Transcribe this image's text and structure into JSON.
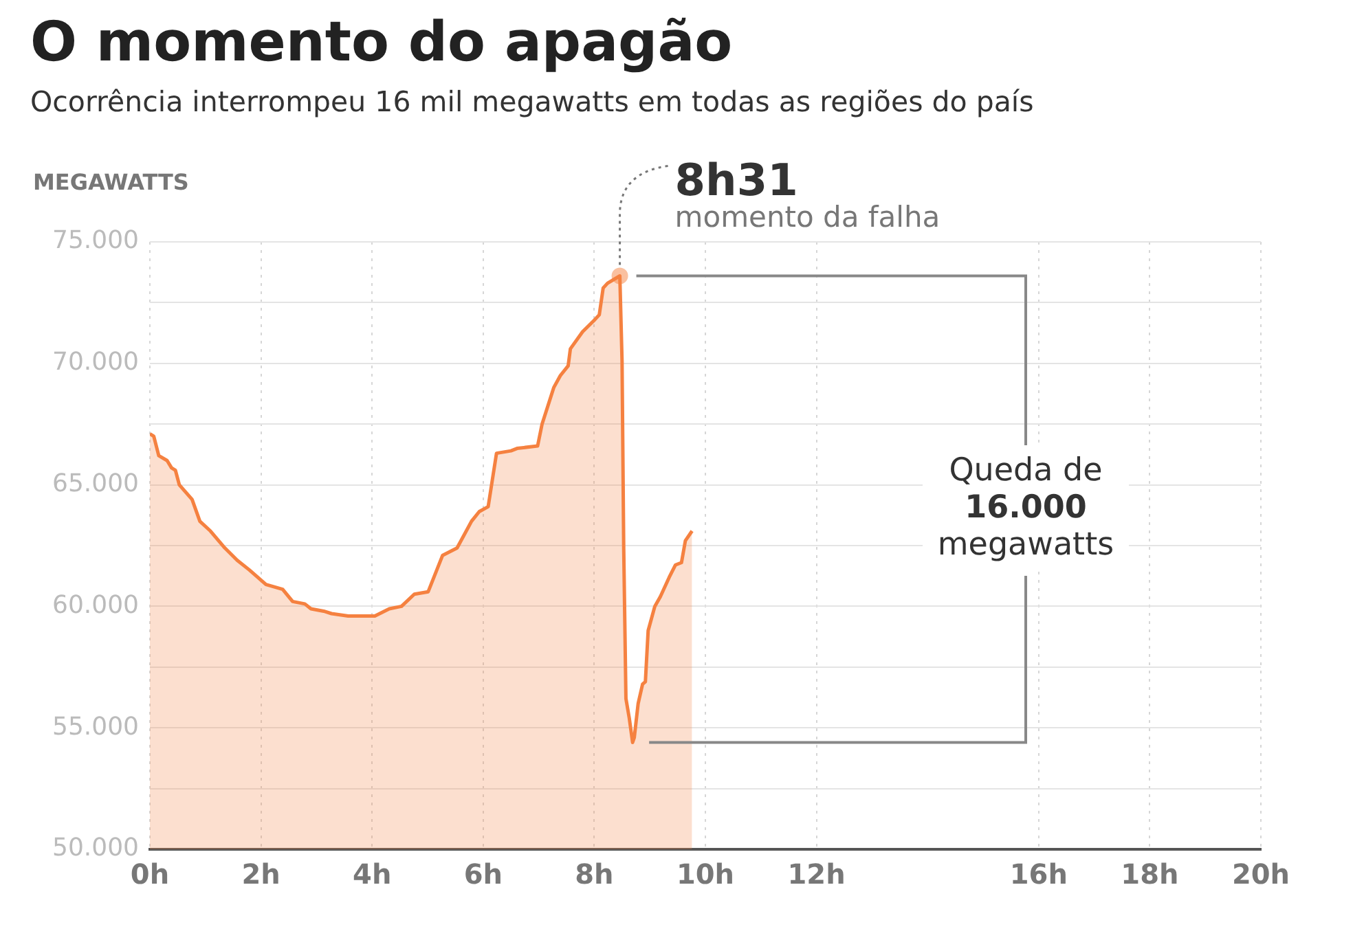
{
  "chart_data": {
    "type": "area",
    "title": "O momento do apagão",
    "subtitle": "Ocorrência interrompeu 16 mil megawatts em todas as regiões do país",
    "ylabel": "MEGAWATTS",
    "series": [
      {
        "color": "#f58140",
        "x": [
          0,
          0.07,
          0.16,
          0.31,
          0.39,
          0.46,
          0.53,
          0.76,
          0.9,
          1.09,
          1.35,
          1.57,
          1.79,
          2.09,
          2.39,
          2.57,
          2.79,
          2.9,
          3.13,
          3.27,
          3.57,
          4.05,
          4.31,
          4.53,
          4.76,
          5.01,
          5.27,
          5.53,
          5.79,
          5.93,
          6.09,
          6.24,
          6.5,
          6.61,
          6.98,
          7.06,
          7.27,
          7.39,
          7.53,
          7.57,
          7.79,
          8.01,
          8.09,
          8.16,
          8.24,
          8.46,
          8.5,
          8.53,
          8.57,
          8.63,
          8.69,
          8.72,
          8.79,
          8.87,
          8.92,
          8.97,
          9.09,
          9.19,
          9.35,
          9.46,
          9.57,
          9.64,
          9.76
        ],
        "values": [
          67100,
          67000,
          66200,
          66000,
          65700,
          65600,
          65000,
          64400,
          63500,
          63100,
          62400,
          61900,
          61500,
          60900,
          60700,
          60200,
          60100,
          59900,
          59800,
          59700,
          59600,
          59600,
          59900,
          60000,
          60500,
          60600,
          62100,
          62400,
          63500,
          63900,
          64100,
          66300,
          66400,
          66500,
          66600,
          67500,
          69000,
          69500,
          69900,
          70600,
          71300,
          71800,
          72000,
          73100,
          73300,
          73600,
          70100,
          62400,
          56200,
          55400,
          54400,
          54600,
          56000,
          56800,
          56900,
          59000,
          60000,
          60400,
          61200,
          61700,
          61800,
          62700,
          63100
        ]
      }
    ],
    "xlim": [
      0,
      20
    ],
    "xticks": [
      {
        "value": 0,
        "label": "0h"
      },
      {
        "value": 2,
        "label": "2h"
      },
      {
        "value": 4,
        "label": "4h"
      },
      {
        "value": 6,
        "label": "6h"
      },
      {
        "value": 8,
        "label": "8h"
      },
      {
        "value": 10,
        "label": "10h"
      },
      {
        "value": 12,
        "label": "12h"
      },
      {
        "value": 16,
        "label": "16h"
      },
      {
        "value": 18,
        "label": "18h"
      },
      {
        "value": 20,
        "label": "20h"
      }
    ],
    "ylim": [
      50000,
      75000
    ],
    "yticks": [
      {
        "value": 50000,
        "label": "50.000"
      },
      {
        "value": 52500,
        "label": null
      },
      {
        "value": 55000,
        "label": "55.000"
      },
      {
        "value": 57500,
        "label": null
      },
      {
        "value": 60000,
        "label": "60.000"
      },
      {
        "value": 62500,
        "label": null
      },
      {
        "value": 65000,
        "label": "65.000"
      },
      {
        "value": 67500,
        "label": null
      },
      {
        "value": 70000,
        "label": "70.000"
      },
      {
        "value": 72500,
        "label": null
      },
      {
        "value": 75000,
        "label": "75.000"
      }
    ],
    "grid": true,
    "annotations": [
      {
        "text": "8h31",
        "x": 8.46,
        "y": 73600
      },
      {
        "text": "momento da falha",
        "x": 8.46,
        "y": 73600
      },
      "Queda de\n16.000\nmegawatts"
    ]
  }
}
